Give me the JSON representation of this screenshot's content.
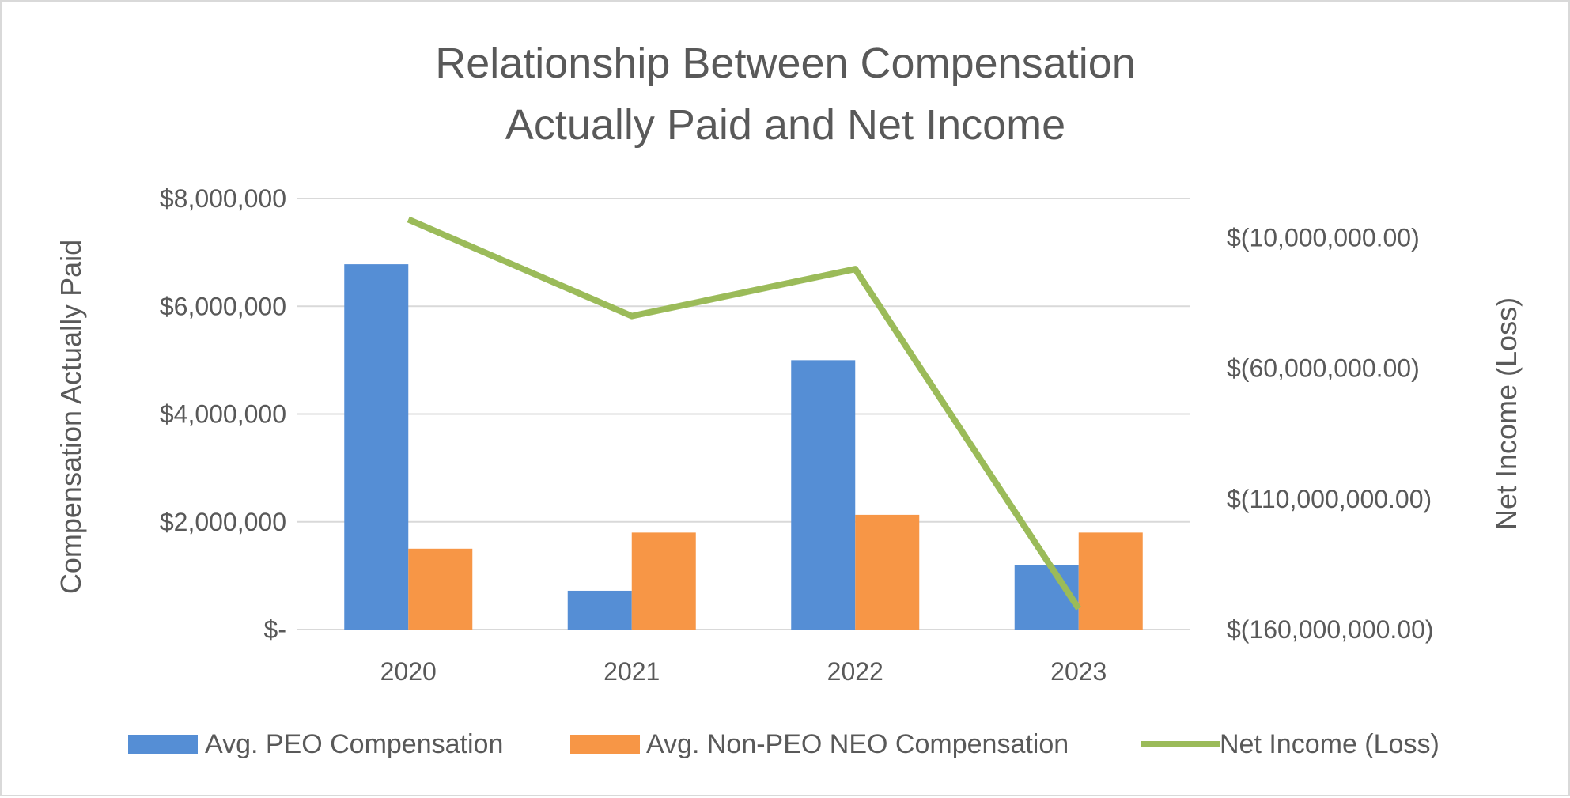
{
  "chart_data": {
    "type": "bar",
    "title_lines": [
      "Relationship Between Compensation",
      "Actually Paid and Net Income"
    ],
    "categories": [
      "2020",
      "2021",
      "2022",
      "2023"
    ],
    "series": [
      {
        "name": "Avg. PEO Compensation",
        "type": "bar",
        "axis": "left",
        "color": "#558ED5",
        "values": [
          6780000,
          720000,
          5000000,
          1200000
        ]
      },
      {
        "name": "Avg. Non-PEO NEO Compensation",
        "type": "bar",
        "axis": "left",
        "color": "#F79646",
        "values": [
          1500000,
          1800000,
          2130000,
          1800000
        ]
      },
      {
        "name": "Net Income (Loss)",
        "type": "line",
        "axis": "right",
        "color": "#9BBB59",
        "values": [
          -3000000,
          -40000000,
          -22000000,
          -152000000
        ]
      }
    ],
    "ylabel": "Compensation Actually Paid",
    "y2label": "Net Income (Loss)",
    "ylim": [
      0,
      8000000
    ],
    "y2lim": [
      -160000000,
      5000000
    ],
    "yticks": [
      {
        "value": 0,
        "label": "$-"
      },
      {
        "value": 2000000,
        "label": "$2,000,000"
      },
      {
        "value": 4000000,
        "label": "$4,000,000"
      },
      {
        "value": 6000000,
        "label": "$6,000,000"
      },
      {
        "value": 8000000,
        "label": "$8,000,000"
      }
    ],
    "y2ticks": [
      {
        "value": -10000000,
        "label": "$(10,000,000.00)"
      },
      {
        "value": -60000000,
        "label": "$(60,000,000.00)"
      },
      {
        "value": -110000000,
        "label": "$(110,000,000.00)"
      },
      {
        "value": -160000000,
        "label": "$(160,000,000.00)"
      }
    ],
    "grid": true,
    "legend": "bottom"
  }
}
